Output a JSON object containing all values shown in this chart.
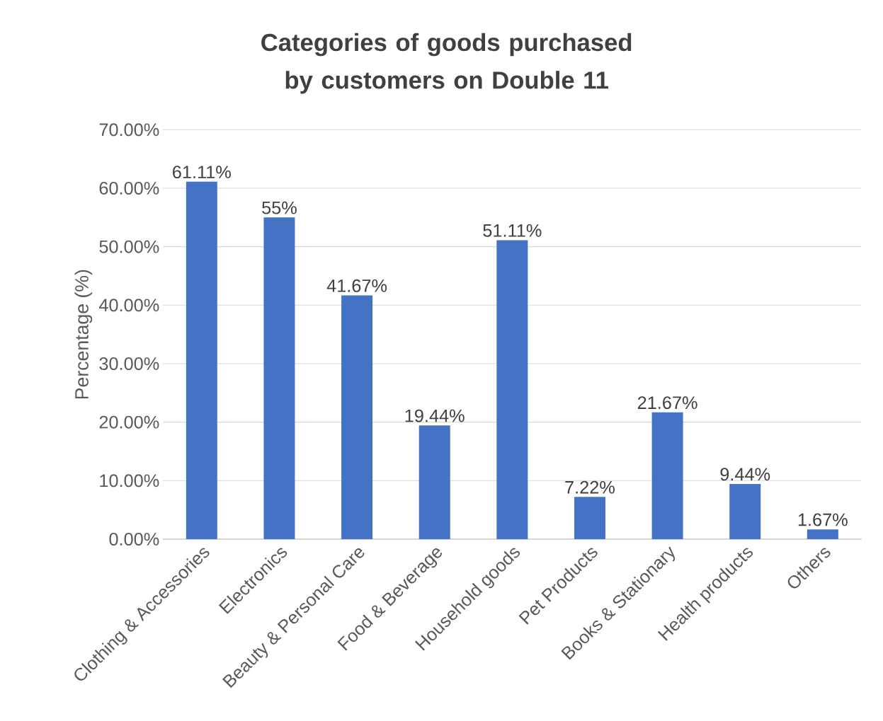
{
  "chart_data": {
    "type": "bar",
    "title": "Categories of goods purchased by customers on Double 11",
    "ylabel": "Percentage (%)",
    "categories": [
      "Clothing & Accessories",
      "Electronics",
      "Beauty & Personal Care",
      "Food & Beverage",
      "Household goods",
      "Pet Products",
      "Books & Stationary",
      "Health products",
      "Others"
    ],
    "values": [
      61.11,
      55,
      41.67,
      19.44,
      51.11,
      7.22,
      21.67,
      9.44,
      1.67
    ],
    "value_labels": [
      "61.11%",
      "55%",
      "41.67%",
      "19.44%",
      "51.11%",
      "7.22%",
      "21.67%",
      "9.44%",
      "1.67%"
    ],
    "color": "#4472c4",
    "ylim": [
      0,
      70
    ],
    "yticks": [
      {
        "value": 0,
        "label": "0.00%"
      },
      {
        "value": 10,
        "label": "10.00%"
      },
      {
        "value": 20,
        "label": "20.00%"
      },
      {
        "value": 30,
        "label": "30.00%"
      },
      {
        "value": 40,
        "label": "40.00%"
      },
      {
        "value": 50,
        "label": "50.00%"
      },
      {
        "value": 60,
        "label": "60.00%"
      },
      {
        "value": 70,
        "label": "70.00%"
      }
    ],
    "grid": "y"
  }
}
